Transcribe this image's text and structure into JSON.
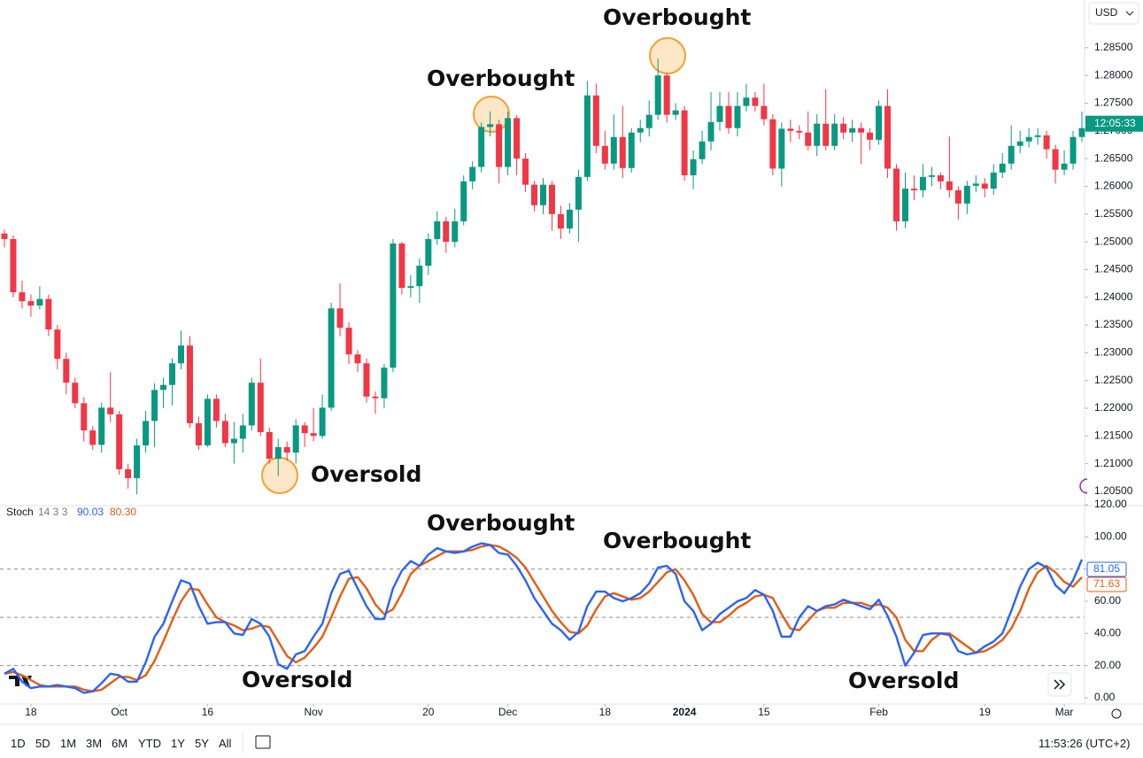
{
  "toolbar": {
    "currency": "USD",
    "ranges": [
      "1D",
      "5D",
      "1M",
      "3M",
      "6M",
      "YTD",
      "1Y",
      "5Y",
      "All"
    ],
    "clock": "11:53:26 (UTC+2)"
  },
  "chart_data": [
    {
      "type": "candlestick",
      "up_color": "#089981",
      "down_color": "#f23645",
      "price_label": "12:05:33",
      "annotations": [
        "Overbought",
        "Overbought",
        "Oversold"
      ],
      "xlim": [
        -0.5,
        122.3
      ],
      "xticks": [
        {
          "value": 3,
          "label": "18"
        },
        {
          "value": 13,
          "label": "Oct"
        },
        {
          "value": 23,
          "label": "16"
        },
        {
          "value": 35,
          "label": "Nov"
        },
        {
          "value": 48,
          "label": "20"
        },
        {
          "value": 57,
          "label": "Dec"
        },
        {
          "value": 68,
          "label": "18"
        },
        {
          "value": 77,
          "label": "2024"
        },
        {
          "value": 86,
          "label": "15"
        },
        {
          "value": 99,
          "label": "Feb"
        },
        {
          "value": 111,
          "label": "19"
        },
        {
          "value": 120,
          "label": "Mar"
        }
      ],
      "ylim": [
        1.2026,
        1.2936
      ],
      "yticks": [
        {
          "value": 1.205,
          "label": "1.20500"
        },
        {
          "value": 1.21,
          "label": "1.21000"
        },
        {
          "value": 1.215,
          "label": "1.21500"
        },
        {
          "value": 1.22,
          "label": "1.22000"
        },
        {
          "value": 1.225,
          "label": "1.22500"
        },
        {
          "value": 1.23,
          "label": "1.23000"
        },
        {
          "value": 1.235,
          "label": "1.23500"
        },
        {
          "value": 1.24,
          "label": "1.24000"
        },
        {
          "value": 1.245,
          "label": "1.24500"
        },
        {
          "value": 1.25,
          "label": "1.25000"
        },
        {
          "value": 1.255,
          "label": "1.25500"
        },
        {
          "value": 1.26,
          "label": "1.26000"
        },
        {
          "value": 1.265,
          "label": "1.26500"
        },
        {
          "value": 1.27,
          "label": "1.27000"
        },
        {
          "value": 1.275,
          "label": "1.27500"
        },
        {
          "value": 1.28,
          "label": "1.28000"
        },
        {
          "value": 1.285,
          "label": "1.28500"
        }
      ],
      "candles": [
        [
          1.2515,
          1.2522,
          1.249,
          1.2505
        ],
        [
          1.2505,
          1.2512,
          1.24,
          1.2409
        ],
        [
          1.2409,
          1.243,
          1.238,
          1.2393
        ],
        [
          1.2393,
          1.2405,
          1.2365,
          1.2385
        ],
        [
          1.2385,
          1.242,
          1.2378,
          1.2397
        ],
        [
          1.2397,
          1.2405,
          1.233,
          1.2342
        ],
        [
          1.2342,
          1.235,
          1.227,
          1.2289
        ],
        [
          1.2289,
          1.23,
          1.2225,
          1.2246
        ],
        [
          1.2246,
          1.2255,
          1.22,
          1.2209
        ],
        [
          1.2209,
          1.222,
          1.214,
          1.216
        ],
        [
          1.216,
          1.2168,
          1.2125,
          1.2134
        ],
        [
          1.2134,
          1.221,
          1.212,
          1.2201
        ],
        [
          1.2201,
          1.2265,
          1.2175,
          1.2189
        ],
        [
          1.2189,
          1.2195,
          1.208,
          1.209
        ],
        [
          1.209,
          1.21,
          1.2055,
          1.2074
        ],
        [
          1.2074,
          1.2145,
          1.2045,
          1.2133
        ],
        [
          1.2133,
          1.2195,
          1.212,
          1.2177
        ],
        [
          1.2177,
          1.2245,
          1.213,
          1.2233
        ],
        [
          1.2233,
          1.2255,
          1.22,
          1.2242
        ],
        [
          1.2242,
          1.229,
          1.2205,
          1.2281
        ],
        [
          1.2281,
          1.234,
          1.227,
          1.2313
        ],
        [
          1.2313,
          1.233,
          1.2165,
          1.2173
        ],
        [
          1.2173,
          1.2185,
          1.2125,
          1.2133
        ],
        [
          1.2133,
          1.2225,
          1.213,
          1.2217
        ],
        [
          1.2217,
          1.2225,
          1.2165,
          1.2177
        ],
        [
          1.2177,
          1.219,
          1.213,
          1.2137
        ],
        [
          1.2137,
          1.2175,
          1.21,
          1.2145
        ],
        [
          1.2145,
          1.219,
          1.212,
          1.2169
        ],
        [
          1.2169,
          1.2255,
          1.216,
          1.2246
        ],
        [
          1.2246,
          1.229,
          1.215,
          1.2157
        ],
        [
          1.2157,
          1.2165,
          1.21,
          1.2109
        ],
        [
          1.2109,
          1.2145,
          1.2078,
          1.213
        ],
        [
          1.213,
          1.214,
          1.2105,
          1.212
        ],
        [
          1.212,
          1.218,
          1.21,
          1.2169
        ],
        [
          1.2169,
          1.2175,
          1.213,
          1.2155
        ],
        [
          1.2155,
          1.22,
          1.214,
          1.215
        ],
        [
          1.215,
          1.2225,
          1.2145,
          1.2201
        ],
        [
          1.2201,
          1.239,
          1.2195,
          1.238
        ],
        [
          1.238,
          1.2425,
          1.233,
          1.2345
        ],
        [
          1.2345,
          1.2355,
          1.228,
          1.2297
        ],
        [
          1.2297,
          1.2305,
          1.2265,
          1.2281
        ],
        [
          1.2281,
          1.229,
          1.221,
          1.2221
        ],
        [
          1.2221,
          1.223,
          1.219,
          1.2218
        ],
        [
          1.2218,
          1.228,
          1.22,
          1.2273
        ],
        [
          1.2273,
          1.2505,
          1.2265,
          1.2497
        ],
        [
          1.2497,
          1.25,
          1.2405,
          1.2417
        ],
        [
          1.2417,
          1.244,
          1.24,
          1.242
        ],
        [
          1.242,
          1.247,
          1.239,
          1.2457
        ],
        [
          1.2457,
          1.2515,
          1.244,
          1.2505
        ],
        [
          1.2505,
          1.2555,
          1.2495,
          1.2537
        ],
        [
          1.2537,
          1.2545,
          1.248,
          1.25
        ],
        [
          1.25,
          1.256,
          1.249,
          1.2537
        ],
        [
          1.2537,
          1.262,
          1.253,
          1.2609
        ],
        [
          1.2609,
          1.2645,
          1.2595,
          1.2635
        ],
        [
          1.2635,
          1.2715,
          1.2625,
          1.2707
        ],
        [
          1.2707,
          1.2735,
          1.269,
          1.2712
        ],
        [
          1.2712,
          1.272,
          1.2605,
          1.2635
        ],
        [
          1.2635,
          1.2735,
          1.262,
          1.2723
        ],
        [
          1.2723,
          1.2728,
          1.262,
          1.265
        ],
        [
          1.265,
          1.266,
          1.259,
          1.2603
        ],
        [
          1.2603,
          1.261,
          1.2555,
          1.2566
        ],
        [
          1.2566,
          1.2615,
          1.255,
          1.2603
        ],
        [
          1.2603,
          1.261,
          1.252,
          1.255
        ],
        [
          1.255,
          1.2565,
          1.2505,
          1.2524
        ],
        [
          1.2524,
          1.257,
          1.2515,
          1.2558
        ],
        [
          1.2558,
          1.263,
          1.25,
          1.2617
        ],
        [
          1.2617,
          1.279,
          1.261,
          1.2764
        ],
        [
          1.2764,
          1.2785,
          1.266,
          1.2673
        ],
        [
          1.2673,
          1.27,
          1.263,
          1.2641
        ],
        [
          1.2641,
          1.273,
          1.263,
          1.2689
        ],
        [
          1.2689,
          1.2745,
          1.2615,
          1.2633
        ],
        [
          1.2633,
          1.2705,
          1.2625,
          1.2697
        ],
        [
          1.2697,
          1.272,
          1.268,
          1.2705
        ],
        [
          1.2705,
          1.2755,
          1.269,
          1.2729
        ],
        [
          1.2729,
          1.283,
          1.272,
          1.28
        ],
        [
          1.28,
          1.2805,
          1.2715,
          1.2729
        ],
        [
          1.2729,
          1.275,
          1.272,
          1.2737
        ],
        [
          1.2737,
          1.2745,
          1.261,
          1.262
        ],
        [
          1.262,
          1.2665,
          1.2595,
          1.2649
        ],
        [
          1.2649,
          1.27,
          1.264,
          1.2681
        ],
        [
          1.2681,
          1.277,
          1.2665,
          1.2716
        ],
        [
          1.2716,
          1.277,
          1.27,
          1.2745
        ],
        [
          1.2745,
          1.277,
          1.2695,
          1.2705
        ],
        [
          1.2705,
          1.277,
          1.269,
          1.2745
        ],
        [
          1.2745,
          1.2785,
          1.2735,
          1.276
        ],
        [
          1.276,
          1.277,
          1.2735,
          1.2745
        ],
        [
          1.2745,
          1.2785,
          1.271,
          1.2721
        ],
        [
          1.2721,
          1.273,
          1.262,
          1.2632
        ],
        [
          1.2632,
          1.2715,
          1.26,
          1.2704
        ],
        [
          1.2704,
          1.272,
          1.268,
          1.27
        ],
        [
          1.27,
          1.271,
          1.2685,
          1.2697
        ],
        [
          1.2697,
          1.2735,
          1.2665,
          1.2673
        ],
        [
          1.2673,
          1.273,
          1.2655,
          1.2713
        ],
        [
          1.2713,
          1.2775,
          1.2665,
          1.2673
        ],
        [
          1.2673,
          1.273,
          1.2665,
          1.2713
        ],
        [
          1.2713,
          1.2725,
          1.2685,
          1.2697
        ],
        [
          1.2697,
          1.272,
          1.268,
          1.2705
        ],
        [
          1.2705,
          1.2715,
          1.264,
          1.2697
        ],
        [
          1.2697,
          1.2705,
          1.2665,
          1.2684
        ],
        [
          1.2684,
          1.2755,
          1.2675,
          1.2745
        ],
        [
          1.2745,
          1.2775,
          1.2615,
          1.2632
        ],
        [
          1.2632,
          1.264,
          1.252,
          1.2537
        ],
        [
          1.2537,
          1.2625,
          1.2525,
          1.2596
        ],
        [
          1.2596,
          1.262,
          1.2575,
          1.2593
        ],
        [
          1.2593,
          1.264,
          1.258,
          1.2617
        ],
        [
          1.2617,
          1.2635,
          1.26,
          1.262
        ],
        [
          1.262,
          1.2625,
          1.2595,
          1.2609
        ],
        [
          1.2609,
          1.269,
          1.258,
          1.2593
        ],
        [
          1.2593,
          1.26,
          1.254,
          1.2569
        ],
        [
          1.2569,
          1.261,
          1.255,
          1.2601
        ],
        [
          1.2601,
          1.262,
          1.259,
          1.2605
        ],
        [
          1.2605,
          1.2615,
          1.258,
          1.2596
        ],
        [
          1.2596,
          1.264,
          1.2585,
          1.2625
        ],
        [
          1.2625,
          1.266,
          1.2615,
          1.2641
        ],
        [
          1.2641,
          1.271,
          1.263,
          1.2673
        ],
        [
          1.2673,
          1.27,
          1.266,
          1.2681
        ],
        [
          1.2681,
          1.2705,
          1.267,
          1.2689
        ],
        [
          1.2689,
          1.2705,
          1.2675,
          1.2692
        ],
        [
          1.2692,
          1.27,
          1.265,
          1.2667
        ],
        [
          1.2667,
          1.2675,
          1.2605,
          1.263
        ],
        [
          1.263,
          1.2665,
          1.262,
          1.2641
        ],
        [
          1.2641,
          1.27,
          1.263,
          1.2689
        ],
        [
          1.2689,
          1.2735,
          1.268,
          1.2705
        ]
      ]
    },
    {
      "type": "line",
      "title": "Stoch",
      "params": "14 3 3",
      "annotations": [
        "Overbought",
        "Overbought",
        "Oversold",
        "Oversold"
      ],
      "ylim": [
        0,
        120
      ],
      "yticks": [
        {
          "value": 0,
          "label": "0.00"
        },
        {
          "value": 20,
          "label": "20.00"
        },
        {
          "value": 40,
          "label": "40.00"
        },
        {
          "value": 60,
          "label": "60.00"
        },
        {
          "value": 80,
          "label": "80.00"
        },
        {
          "value": 100,
          "label": "100.00"
        },
        {
          "value": 120,
          "label": "120.00"
        }
      ],
      "levels": [
        20,
        50,
        80
      ],
      "series": [
        {
          "color": "#2962ff",
          "legend_value": "90.03",
          "axis_label": "81.05",
          "values": [
            15,
            18,
            10,
            6,
            7,
            7,
            8,
            7,
            6,
            3,
            4,
            9,
            15,
            14,
            10,
            10,
            22,
            38,
            46,
            60,
            73,
            71,
            57,
            46,
            47,
            47,
            40,
            39,
            49,
            46,
            38,
            21,
            18,
            27,
            29,
            38,
            46,
            65,
            77,
            79,
            68,
            57,
            49,
            49,
            68,
            79,
            85,
            82,
            89,
            93,
            91,
            90,
            91,
            94,
            96,
            95,
            90,
            89,
            82,
            73,
            62,
            54,
            46,
            42,
            36,
            41,
            57,
            66,
            66,
            62,
            60,
            62,
            65,
            71,
            81,
            82,
            77,
            60,
            54,
            42,
            46,
            52,
            56,
            60,
            62,
            67,
            64,
            54,
            38,
            38,
            50,
            57,
            54,
            57,
            58,
            61,
            59,
            57,
            55,
            61,
            51,
            38,
            20,
            28,
            39,
            40,
            40,
            39,
            29,
            27,
            28,
            32,
            35,
            40,
            54,
            69,
            80,
            84,
            81,
            70,
            65,
            73,
            86
          ]
        },
        {
          "color": "#e65c0f",
          "legend_value": "80.30",
          "axis_label": "71.63",
          "values": [
            15,
            16,
            14,
            11,
            8,
            7,
            7,
            7,
            7,
            5,
            4,
            5,
            9,
            13,
            13,
            11,
            14,
            23,
            35,
            48,
            60,
            68,
            67,
            58,
            50,
            47,
            45,
            42,
            43,
            45,
            44,
            35,
            26,
            22,
            25,
            31,
            38,
            50,
            63,
            74,
            75,
            68,
            58,
            52,
            55,
            65,
            77,
            82,
            85,
            88,
            91,
            91,
            91,
            92,
            94,
            95,
            94,
            91,
            87,
            81,
            72,
            63,
            54,
            47,
            41,
            40,
            45,
            55,
            63,
            65,
            63,
            61,
            62,
            66,
            72,
            78,
            80,
            73,
            64,
            52,
            47,
            47,
            51,
            56,
            59,
            63,
            64,
            62,
            52,
            43,
            42,
            48,
            54,
            56,
            56,
            59,
            59,
            59,
            57,
            58,
            56,
            50,
            36,
            29,
            29,
            36,
            40,
            40,
            36,
            32,
            28,
            29,
            32,
            36,
            43,
            54,
            68,
            78,
            82,
            78,
            72,
            69,
            75
          ]
        }
      ]
    }
  ]
}
